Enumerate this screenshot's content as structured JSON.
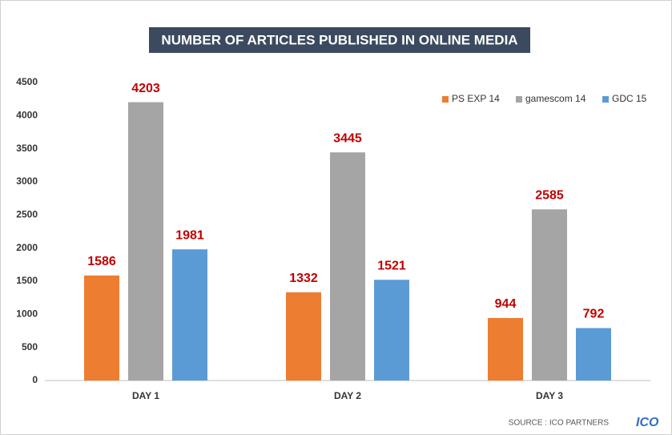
{
  "chart_data": {
    "type": "bar",
    "title": "NUMBER OF ARTICLES PUBLISHED IN ONLINE MEDIA",
    "categories": [
      "DAY 1",
      "DAY 2",
      "DAY 3"
    ],
    "series": [
      {
        "name": "PS EXP 14",
        "color": "#ed7d31",
        "values": [
          1586,
          1332,
          944
        ]
      },
      {
        "name": "gamescom 14",
        "color": "#a5a5a5",
        "values": [
          4203,
          3445,
          2585
        ]
      },
      {
        "name": "GDC 15",
        "color": "#5b9bd5",
        "values": [
          1981,
          1521,
          792
        ]
      }
    ],
    "ylim": [
      0,
      4500
    ],
    "yticks": [
      0,
      500,
      1000,
      1500,
      2000,
      2500,
      3000,
      3500,
      4000,
      4500
    ],
    "grid": false,
    "legend": "top-right",
    "source": "SOURCE : ICO PARTNERS",
    "logo": "ICO"
  }
}
